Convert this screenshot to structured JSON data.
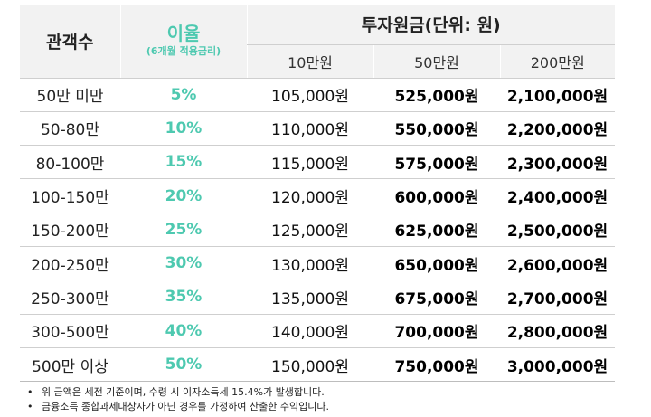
{
  "header": {
    "audience": "관객수",
    "rate_title": "이율",
    "rate_sub": "(6개월 적용금리)",
    "investment_title": "투자원금(단위: 원)",
    "amounts": [
      "10만원",
      "50만원",
      "200만원"
    ]
  },
  "rows": [
    {
      "audience": "50만 미만",
      "rate": "5%",
      "v1": "105,000원",
      "v2": "525,000원",
      "v3": "2,100,000원"
    },
    {
      "audience": "50-80만",
      "rate": "10%",
      "v1": "110,000원",
      "v2": "550,000원",
      "v3": "2,200,000원"
    },
    {
      "audience": "80-100만",
      "rate": "15%",
      "v1": "115,000원",
      "v2": "575,000원",
      "v3": "2,300,000원"
    },
    {
      "audience": "100-150만",
      "rate": "20%",
      "v1": "120,000원",
      "v2": "600,000원",
      "v3": "2,400,000원"
    },
    {
      "audience": "150-200만",
      "rate": "25%",
      "v1": "125,000원",
      "v2": "625,000원",
      "v3": "2,500,000원"
    },
    {
      "audience": "200-250만",
      "rate": "30%",
      "v1": "130,000원",
      "v2": "650,000원",
      "v3": "2,600,000원"
    },
    {
      "audience": "250-300만",
      "rate": "35%",
      "v1": "135,000원",
      "v2": "675,000원",
      "v3": "2,700,000원"
    },
    {
      "audience": "300-500만",
      "rate": "40%",
      "v1": "140,000원",
      "v2": "700,000원",
      "v3": "2,800,000원"
    },
    {
      "audience": "500만 이상",
      "rate": "50%",
      "v1": "150,000원",
      "v2": "750,000원",
      "v3": "3,000,000원"
    }
  ],
  "notes": [
    "위 금액은 세전 기준이며, 수령 시 이자소득세 15.4%가 발생합니다.",
    "금융소득 종합과세대상자가 아닌 경우를 가정하여 산출한 수익입니다."
  ],
  "note_bullet": "•",
  "colors": {
    "accent": "#4ec9b0",
    "header_bg": "#f2f2f2",
    "rule": "#cfcfcf"
  }
}
